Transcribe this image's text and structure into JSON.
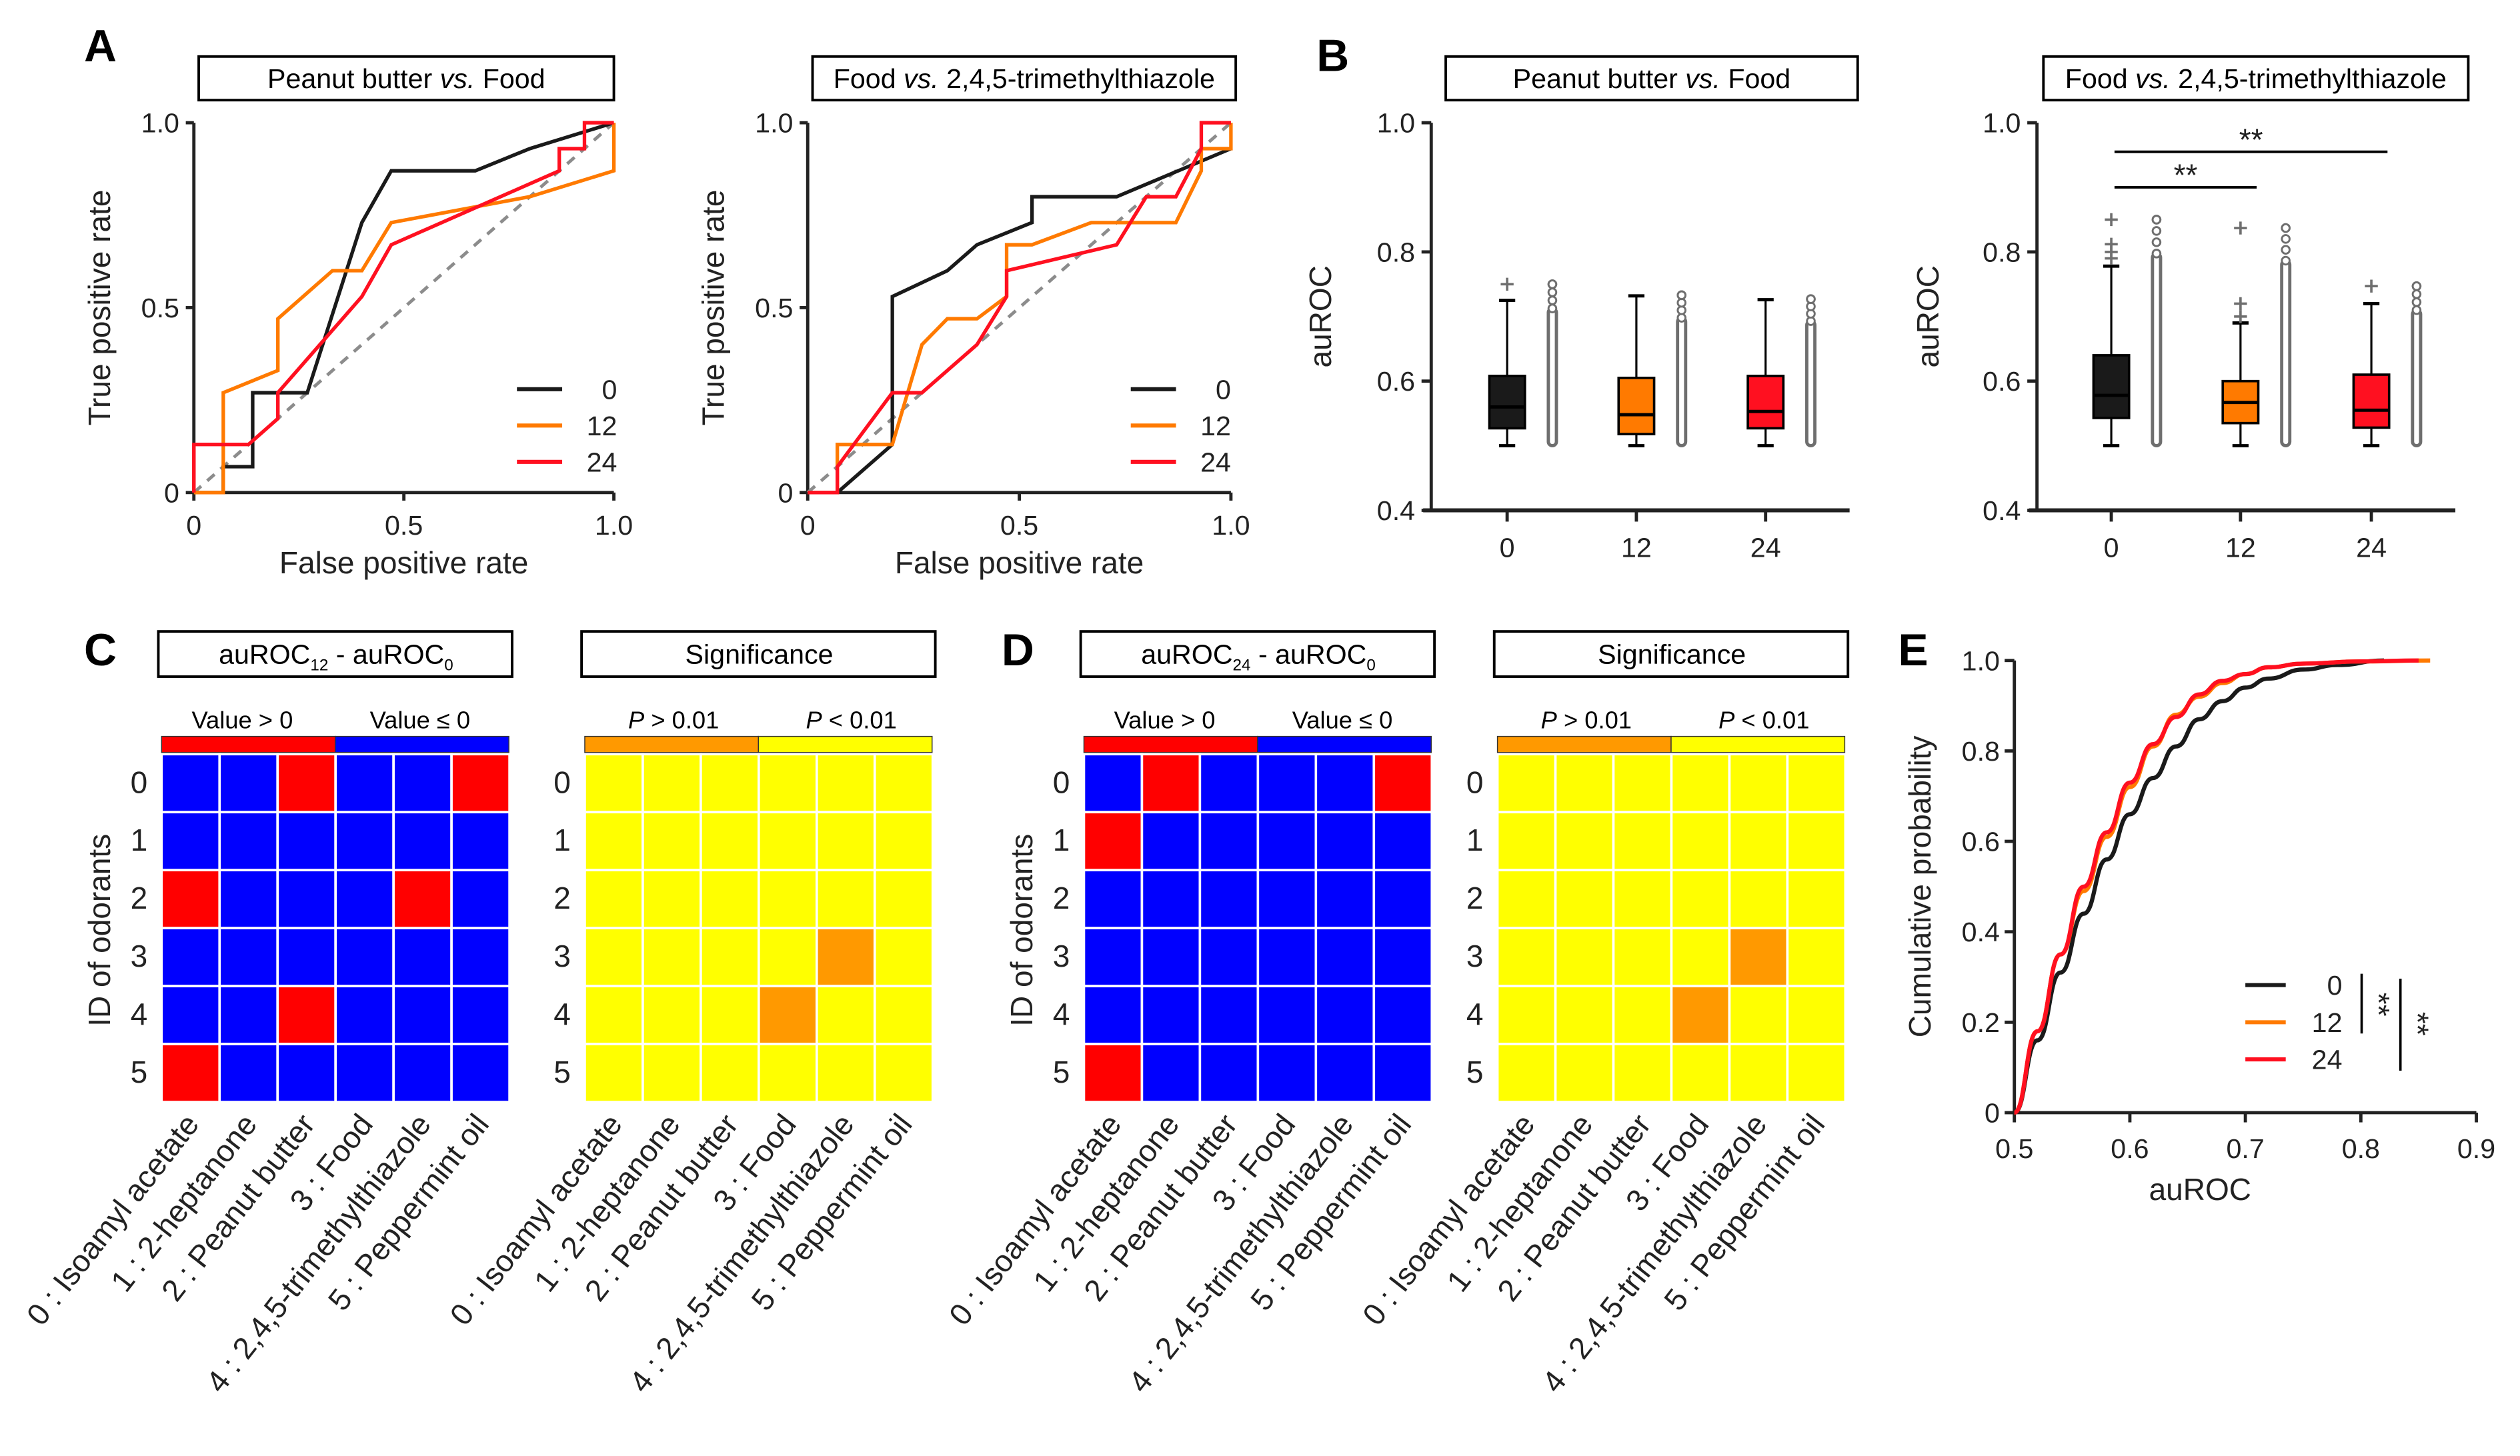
{
  "panel_labels": {
    "A": "A",
    "B": "B",
    "C": "C",
    "D": "D",
    "E": "E"
  },
  "colors": {
    "t0": "#1a1a1a",
    "t12": "#ff7a00",
    "t24": "#ff1020",
    "diag": "#8c8c8c",
    "pos": "#ff0000",
    "neg": "#0000ff",
    "ns": "#ff9900",
    "sig": "#ffff00",
    "outlier": "#6e6e6e"
  },
  "chart_data": [
    {
      "id": "A1",
      "type": "line",
      "title": {
        "pre": "Peanut butter ",
        "italic": "vs.",
        "post": " Food"
      },
      "xlabel": "False positive rate",
      "ylabel": "True positive rate",
      "xlim": [
        0,
        1
      ],
      "ylim": [
        0,
        1
      ],
      "xticks": [
        "0",
        "0.5",
        "1.0"
      ],
      "yticks": [
        "0",
        "0.5",
        "1.0"
      ],
      "xtick_values": [
        0,
        0.5,
        1
      ],
      "ytick_values": [
        0,
        0.5,
        1
      ],
      "chance_line": true,
      "legend": "bottom-right",
      "series": [
        {
          "name": "0",
          "color_key": "t0",
          "points": [
            [
              0,
              0
            ],
            [
              0.07,
              0
            ],
            [
              0.07,
              0.07
            ],
            [
              0.14,
              0.07
            ],
            [
              0.14,
              0.27
            ],
            [
              0.27,
              0.27
            ],
            [
              0.4,
              0.73
            ],
            [
              0.47,
              0.87
            ],
            [
              0.67,
              0.87
            ],
            [
              0.8,
              0.93
            ],
            [
              1,
              1
            ]
          ]
        },
        {
          "name": "12",
          "color_key": "t12",
          "points": [
            [
              0,
              0
            ],
            [
              0.07,
              0
            ],
            [
              0.07,
              0.27
            ],
            [
              0.2,
              0.33
            ],
            [
              0.2,
              0.47
            ],
            [
              0.33,
              0.6
            ],
            [
              0.4,
              0.6
            ],
            [
              0.47,
              0.73
            ],
            [
              0.8,
              0.8
            ],
            [
              1,
              0.87
            ],
            [
              1,
              1
            ]
          ]
        },
        {
          "name": "24",
          "color_key": "t24",
          "points": [
            [
              0,
              0
            ],
            [
              0,
              0.13
            ],
            [
              0.13,
              0.13
            ],
            [
              0.2,
              0.2
            ],
            [
              0.2,
              0.27
            ],
            [
              0.4,
              0.53
            ],
            [
              0.47,
              0.67
            ],
            [
              0.87,
              0.87
            ],
            [
              0.87,
              0.93
            ],
            [
              0.93,
              0.93
            ],
            [
              0.93,
              1
            ],
            [
              1,
              1
            ]
          ]
        }
      ]
    },
    {
      "id": "A2",
      "type": "line",
      "title": {
        "pre": "Food ",
        "italic": "vs.",
        "post": " 2,4,5-trimethylthiazole"
      },
      "xlabel": "False positive rate",
      "ylabel": "True positive rate",
      "xlim": [
        0,
        1
      ],
      "ylim": [
        0,
        1
      ],
      "xticks": [
        "0",
        "0.5",
        "1.0"
      ],
      "yticks": [
        "0",
        "0.5",
        "1.0"
      ],
      "xtick_values": [
        0,
        0.5,
        1
      ],
      "ytick_values": [
        0,
        0.5,
        1
      ],
      "chance_line": true,
      "legend": "bottom-right",
      "series": [
        {
          "name": "0",
          "color_key": "t0",
          "points": [
            [
              0,
              0
            ],
            [
              0.07,
              0
            ],
            [
              0.2,
              0.13
            ],
            [
              0.2,
              0.53
            ],
            [
              0.33,
              0.6
            ],
            [
              0.4,
              0.67
            ],
            [
              0.53,
              0.73
            ],
            [
              0.53,
              0.8
            ],
            [
              0.73,
              0.8
            ],
            [
              1,
              0.93
            ]
          ]
        },
        {
          "name": "12",
          "color_key": "t12",
          "points": [
            [
              0,
              0
            ],
            [
              0.07,
              0
            ],
            [
              0.07,
              0.13
            ],
            [
              0.2,
              0.13
            ],
            [
              0.27,
              0.4
            ],
            [
              0.33,
              0.47
            ],
            [
              0.4,
              0.47
            ],
            [
              0.47,
              0.53
            ],
            [
              0.47,
              0.67
            ],
            [
              0.53,
              0.67
            ],
            [
              0.67,
              0.73
            ],
            [
              0.87,
              0.73
            ],
            [
              0.93,
              0.87
            ],
            [
              0.93,
              0.93
            ],
            [
              1,
              0.93
            ],
            [
              1,
              1
            ]
          ]
        },
        {
          "name": "24",
          "color_key": "t24",
          "points": [
            [
              0,
              0
            ],
            [
              0.07,
              0
            ],
            [
              0.07,
              0.07
            ],
            [
              0.2,
              0.27
            ],
            [
              0.27,
              0.27
            ],
            [
              0.4,
              0.4
            ],
            [
              0.47,
              0.53
            ],
            [
              0.47,
              0.6
            ],
            [
              0.73,
              0.67
            ],
            [
              0.8,
              0.8
            ],
            [
              0.87,
              0.8
            ],
            [
              0.93,
              0.93
            ],
            [
              0.93,
              1
            ],
            [
              1,
              1
            ]
          ]
        }
      ]
    },
    {
      "id": "B1",
      "type": "box",
      "title": {
        "pre": "Peanut butter ",
        "italic": "vs.",
        "post": " Food"
      },
      "ylabel": "auROC",
      "ylim": [
        0.4,
        1.0
      ],
      "yticks": [
        "0.4",
        "0.6",
        "0.8",
        "1.0"
      ],
      "ytick_values": [
        0.4,
        0.6,
        0.8,
        1.0
      ],
      "categories": [
        "0",
        "12",
        "24"
      ],
      "boxes": [
        {
          "color_key": "t0",
          "whislo": 0.5,
          "q1": 0.527,
          "median": 0.56,
          "q3": 0.608,
          "whishi": 0.725,
          "outliers": [
            0.75
          ],
          "points_range": [
            0.5,
            0.75
          ]
        },
        {
          "color_key": "t12",
          "whislo": 0.5,
          "q1": 0.518,
          "median": 0.548,
          "q3": 0.605,
          "whishi": 0.732,
          "outliers": [],
          "points_range": [
            0.5,
            0.733
          ]
        },
        {
          "color_key": "t24",
          "whislo": 0.5,
          "q1": 0.527,
          "median": 0.553,
          "q3": 0.608,
          "whishi": 0.726,
          "outliers": [],
          "points_range": [
            0.5,
            0.727
          ]
        }
      ],
      "significance": []
    },
    {
      "id": "B2",
      "type": "box",
      "title": {
        "pre": "Food ",
        "italic": "vs.",
        "post": " 2,4,5-trimethylthiazole"
      },
      "ylabel": "auROC",
      "ylim": [
        0.4,
        1.0
      ],
      "yticks": [
        "0.4",
        "0.6",
        "0.8",
        "1.0"
      ],
      "ytick_values": [
        0.4,
        0.6,
        0.8,
        1.0
      ],
      "categories": [
        "0",
        "12",
        "24"
      ],
      "boxes": [
        {
          "color_key": "t0",
          "whislo": 0.5,
          "q1": 0.543,
          "median": 0.578,
          "q3": 0.64,
          "whishi": 0.778,
          "outliers": [
            0.79,
            0.8,
            0.812,
            0.85
          ],
          "points_range": [
            0.5,
            0.85
          ]
        },
        {
          "color_key": "t12",
          "whislo": 0.5,
          "q1": 0.535,
          "median": 0.567,
          "q3": 0.6,
          "whishi": 0.69,
          "outliers": [
            0.7,
            0.72,
            0.837
          ],
          "points_range": [
            0.5,
            0.837
          ]
        },
        {
          "color_key": "t24",
          "whislo": 0.5,
          "q1": 0.528,
          "median": 0.555,
          "q3": 0.61,
          "whishi": 0.72,
          "outliers": [
            0.747
          ],
          "points_range": [
            0.5,
            0.747
          ]
        }
      ],
      "significance": [
        {
          "from": "0",
          "to": "12",
          "label": "**",
          "level": 0.9
        },
        {
          "from": "0",
          "to": "24",
          "label": "**",
          "level": 0.955
        }
      ]
    },
    {
      "id": "E",
      "type": "line",
      "xlabel": "auROC",
      "ylabel": "Cumulative probability",
      "xlim": [
        0.5,
        0.9
      ],
      "ylim": [
        0,
        1
      ],
      "xticks": [
        "0.5",
        "0.6",
        "0.7",
        "0.8",
        "0.9"
      ],
      "xtick_values": [
        0.5,
        0.6,
        0.7,
        0.8,
        0.9
      ],
      "yticks": [
        "0",
        "0.2",
        "0.4",
        "0.6",
        "0.8",
        "1.0"
      ],
      "ytick_values": [
        0,
        0.2,
        0.4,
        0.6,
        0.8,
        1.0
      ],
      "legend": "bottom-right",
      "series": [
        {
          "name": "0",
          "color_key": "t0",
          "points": [
            [
              0.5,
              0
            ],
            [
              0.52,
              0.16
            ],
            [
              0.54,
              0.31
            ],
            [
              0.56,
              0.44
            ],
            [
              0.58,
              0.56
            ],
            [
              0.6,
              0.66
            ],
            [
              0.62,
              0.74
            ],
            [
              0.64,
              0.81
            ],
            [
              0.66,
              0.87
            ],
            [
              0.68,
              0.91
            ],
            [
              0.7,
              0.94
            ],
            [
              0.72,
              0.96
            ],
            [
              0.75,
              0.98
            ],
            [
              0.78,
              0.99
            ],
            [
              0.82,
              1.0
            ]
          ]
        },
        {
          "name": "12",
          "color_key": "t12",
          "points": [
            [
              0.5,
              0
            ],
            [
              0.52,
              0.18
            ],
            [
              0.54,
              0.35
            ],
            [
              0.56,
              0.49
            ],
            [
              0.58,
              0.61
            ],
            [
              0.6,
              0.72
            ],
            [
              0.62,
              0.81
            ],
            [
              0.64,
              0.88
            ],
            [
              0.66,
              0.92
            ],
            [
              0.68,
              0.95
            ],
            [
              0.7,
              0.97
            ],
            [
              0.72,
              0.985
            ],
            [
              0.75,
              0.993
            ],
            [
              0.8,
              0.998
            ],
            [
              0.86,
              1.0
            ]
          ]
        },
        {
          "name": "24",
          "color_key": "t24",
          "points": [
            [
              0.5,
              0
            ],
            [
              0.52,
              0.18
            ],
            [
              0.54,
              0.35
            ],
            [
              0.56,
              0.5
            ],
            [
              0.58,
              0.62
            ],
            [
              0.6,
              0.73
            ],
            [
              0.62,
              0.815
            ],
            [
              0.64,
              0.875
            ],
            [
              0.66,
              0.925
            ],
            [
              0.68,
              0.955
            ],
            [
              0.7,
              0.97
            ],
            [
              0.72,
              0.985
            ],
            [
              0.75,
              0.993
            ],
            [
              0.8,
              0.998
            ],
            [
              0.85,
              1.0
            ]
          ]
        }
      ],
      "significance": [
        {
          "between": [
            "0",
            "12"
          ],
          "label": "**"
        },
        {
          "between": [
            "0",
            "24"
          ],
          "label": "**"
        }
      ]
    }
  ],
  "heatmaps": {
    "row_axis_label": "ID of odorants",
    "row_labels": [
      "0",
      "1",
      "2",
      "3",
      "4",
      "5"
    ],
    "column_labels": [
      "0 : Isoamyl acetate",
      "1 : 2-heptanone",
      "2 : Peanut butter",
      "3 : Food",
      "4 : 2,4,5-trimethylthiazole",
      "5 : Peppermint oil"
    ],
    "value_legend": {
      "left": "Value > 0",
      "right": "Value ≤ 0"
    },
    "sig_legend": {
      "left_italic": "P",
      "left": " > 0.01",
      "right_italic": "P",
      "right": " < 0.01"
    },
    "sig_title": "Significance",
    "C": {
      "title": {
        "main": "auROC",
        "sub1": "12",
        "mid": " - auROC",
        "sub2": "0"
      },
      "difference_positive": [
        [
          0,
          0,
          1,
          0,
          0,
          1
        ],
        [
          0,
          0,
          0,
          0,
          0,
          0
        ],
        [
          1,
          0,
          0,
          0,
          1,
          0
        ],
        [
          0,
          0,
          0,
          0,
          0,
          0
        ],
        [
          0,
          0,
          1,
          0,
          0,
          0
        ],
        [
          1,
          0,
          0,
          0,
          0,
          0
        ]
      ],
      "significant": [
        [
          0,
          0,
          0,
          0,
          0,
          0
        ],
        [
          0,
          0,
          0,
          0,
          0,
          0
        ],
        [
          0,
          0,
          0,
          0,
          0,
          0
        ],
        [
          0,
          0,
          0,
          0,
          1,
          0
        ],
        [
          0,
          0,
          0,
          1,
          0,
          0
        ],
        [
          0,
          0,
          0,
          0,
          0,
          0
        ]
      ]
    },
    "D": {
      "title": {
        "main": "auROC",
        "sub1": "24",
        "mid": " - auROC",
        "sub2": "0"
      },
      "difference_positive": [
        [
          0,
          1,
          0,
          0,
          0,
          1
        ],
        [
          1,
          0,
          0,
          0,
          0,
          0
        ],
        [
          0,
          0,
          0,
          0,
          0,
          0
        ],
        [
          0,
          0,
          0,
          0,
          0,
          0
        ],
        [
          0,
          0,
          0,
          0,
          0,
          0
        ],
        [
          1,
          0,
          0,
          0,
          0,
          0
        ]
      ],
      "significant": [
        [
          0,
          0,
          0,
          0,
          0,
          0
        ],
        [
          0,
          0,
          0,
          0,
          0,
          0
        ],
        [
          0,
          0,
          0,
          0,
          0,
          0
        ],
        [
          0,
          0,
          0,
          0,
          1,
          0
        ],
        [
          0,
          0,
          0,
          1,
          0,
          0
        ],
        [
          0,
          0,
          0,
          0,
          0,
          0
        ]
      ]
    }
  }
}
